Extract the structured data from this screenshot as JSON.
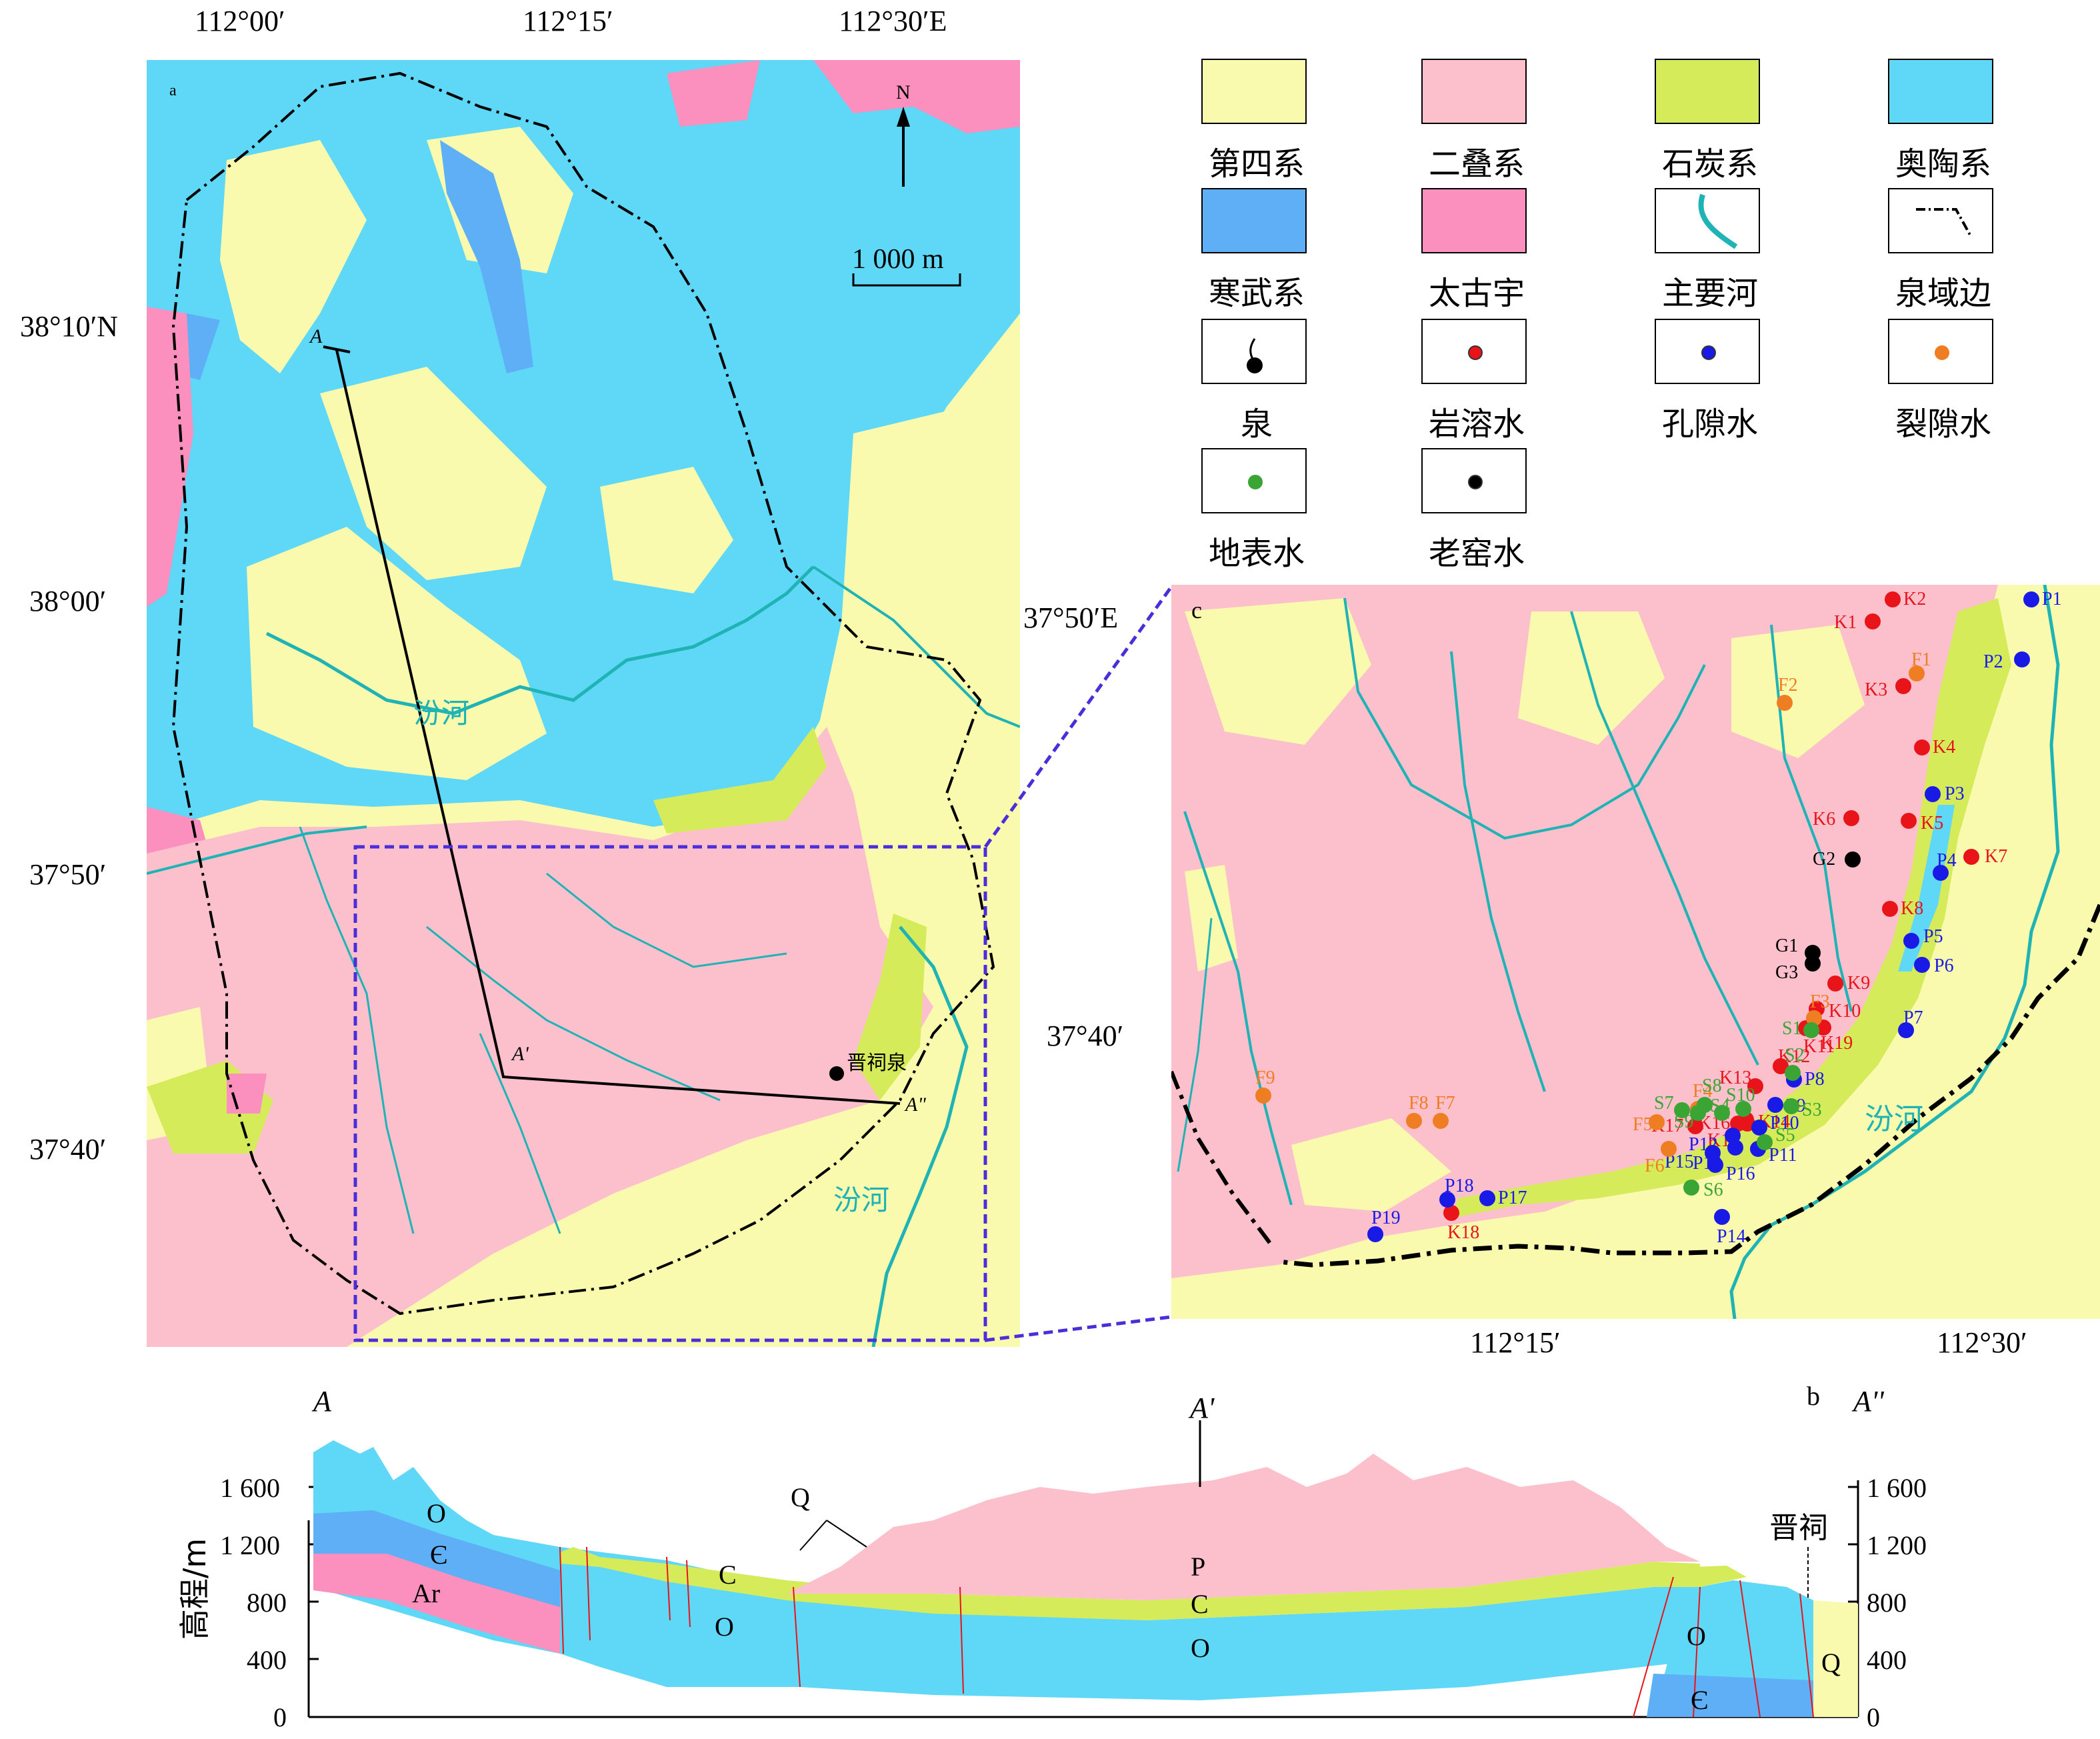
{
  "map_a": {
    "panel_tag": "a",
    "top_coords": [
      "112°00′",
      "112°15′",
      "112°30′E"
    ],
    "left_coords": [
      "38°10′N",
      "38°00′",
      "37°50′",
      "37°40′"
    ],
    "north": "N",
    "scale": "1 000 m",
    "river": "汾河",
    "river2": "汾河",
    "spring": "晋祠泉",
    "section_points": [
      "A",
      "A'",
      "A\""
    ]
  },
  "legend": {
    "items": [
      {
        "label": "第四系",
        "color": "#fafaae",
        "kind": "fill"
      },
      {
        "label": "二叠系",
        "color": "#fcc0cc",
        "kind": "fill"
      },
      {
        "label": "石炭系",
        "color": "#d5eb5a",
        "kind": "fill"
      },
      {
        "label": "奥陶系",
        "color": "#5fd7f6",
        "kind": "fill"
      },
      {
        "label": "寒武系",
        "color": "#5eaff6",
        "kind": "fill"
      },
      {
        "label": "太古宇",
        "color": "#fb8fbd",
        "kind": "fill"
      },
      {
        "label": "主要河流",
        "color": "#1fb3b5",
        "kind": "river"
      },
      {
        "label": "泉域边界",
        "color": "#000000",
        "kind": "boundary"
      },
      {
        "label": "泉",
        "color": "#000000",
        "kind": "spring"
      },
      {
        "label": "岩溶水",
        "color": "#e8141a",
        "kind": "dot"
      },
      {
        "label": "孔隙水",
        "color": "#1a1ae6",
        "kind": "dot"
      },
      {
        "label": "裂隙水",
        "color": "#ef7d22",
        "kind": "dot"
      },
      {
        "label": "地表水",
        "color": "#3aa535",
        "kind": "dot"
      },
      {
        "label": "老窑水",
        "color": "#000000",
        "kind": "dot"
      }
    ]
  },
  "map_c": {
    "panel_tag": "c",
    "top_right_coord": "37°50′E",
    "left_coord": "37°40′",
    "bottom_coords": [
      "112°15′",
      "112°30′"
    ],
    "river": "汾河",
    "samples": {
      "karst": [
        "K1",
        "K2",
        "K3",
        "K4",
        "K5",
        "K6",
        "K7",
        "K8",
        "K9",
        "K10",
        "K11",
        "K12",
        "K13",
        "K14",
        "K15",
        "K16",
        "K17",
        "K18",
        "K19"
      ],
      "pore": [
        "P1",
        "P2",
        "P3",
        "P4",
        "P5",
        "P6",
        "P7",
        "P8",
        "P9",
        "P10",
        "P11",
        "P12",
        "P13",
        "P14",
        "P15",
        "P16",
        "P17",
        "P18",
        "P19"
      ],
      "fissure": [
        "F1",
        "F2",
        "F3",
        "F4",
        "F5",
        "F6",
        "F7",
        "F8",
        "F9"
      ],
      "surface": [
        "S1",
        "S2",
        "S3",
        "S4",
        "S5",
        "S6",
        "S7",
        "S8",
        "S9",
        "S10"
      ],
      "mine": [
        "G1",
        "G2",
        "G3"
      ]
    }
  },
  "section_b": {
    "panel_tag": "b",
    "label_start": "A",
    "label_mid": "A'",
    "label_end": "A''",
    "y_title": "高程/m",
    "y_ticks": [
      "0",
      "400",
      "800",
      "1 200",
      "1 600"
    ],
    "strata_labels": [
      "O",
      "Є",
      "Ar",
      "C",
      "O",
      "Q",
      "P",
      "C",
      "O",
      "O",
      "Є",
      "Q"
    ],
    "spring_label": "晋祠"
  }
}
